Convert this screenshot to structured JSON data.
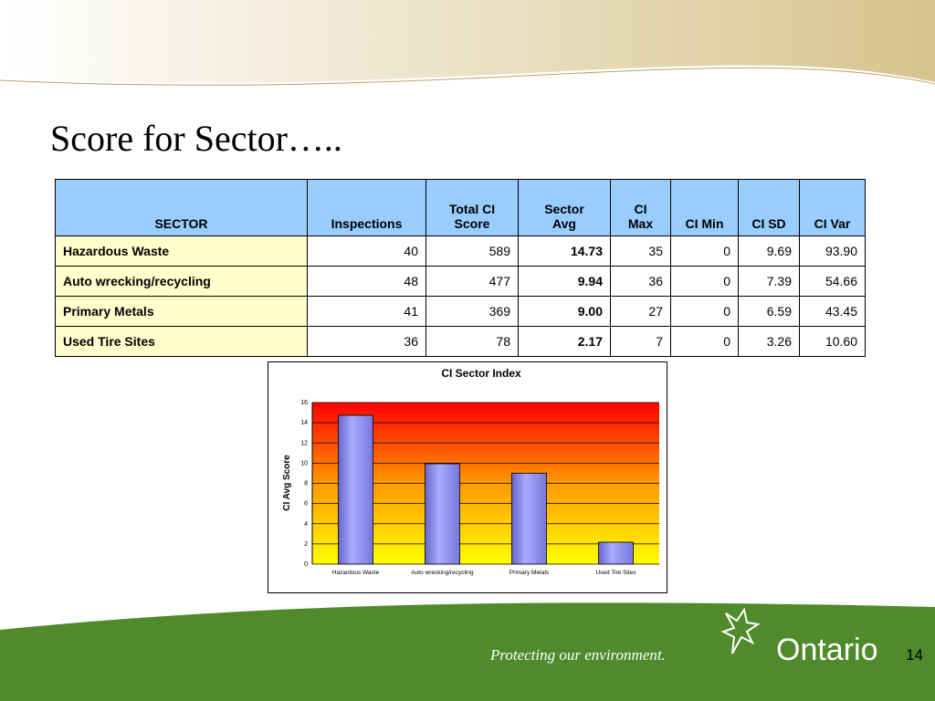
{
  "header": {
    "title": "Score for Sector….."
  },
  "table": {
    "headers": [
      "SECTOR",
      "Inspections",
      "Total CI\nScore",
      "Sector\nAvg",
      "CI\nMax",
      "CI Min",
      "CI SD",
      "CI Var"
    ],
    "rows": [
      [
        "Hazardous Waste",
        "40",
        "589",
        "14.73",
        "35",
        "0",
        "9.69",
        "93.90"
      ],
      [
        "Auto wrecking/recycling",
        "48",
        "477",
        "9.94",
        "36",
        "0",
        "7.39",
        "54.66"
      ],
      [
        "Primary Metals",
        "41",
        "369",
        "9.00",
        "27",
        "0",
        "6.59",
        "43.45"
      ],
      [
        "Used Tire Sites",
        "36",
        "78",
        "2.17",
        "7",
        "0",
        "3.26",
        "10.60"
      ]
    ]
  },
  "chart_data": {
    "type": "bar",
    "title": "CI Sector Index",
    "y_label": "CI Avg Score",
    "categories": [
      "Hazardous Waste",
      "Auto wrecking/recycling",
      "Primary Metals",
      "Used Tire Sites"
    ],
    "values": [
      14.73,
      9.94,
      9.0,
      2.17
    ],
    "color": "#9999ff",
    "ylim": [
      0,
      16
    ],
    "yticks": [
      0,
      2,
      4,
      6,
      8,
      10,
      12,
      14,
      16
    ],
    "grid": true
  },
  "footer": {
    "tagline": "Protecting our environment.",
    "brand": "Ontario",
    "page": "14"
  }
}
